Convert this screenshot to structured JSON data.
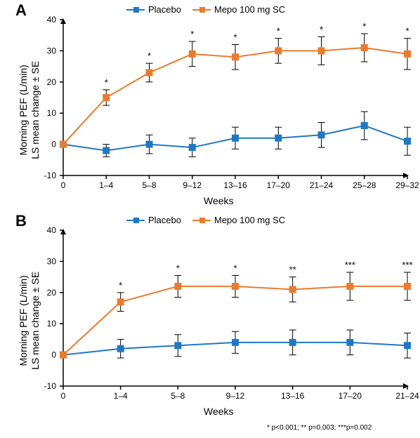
{
  "legend": {
    "placebo": "Placebo",
    "mepo": "Mepo 100 mg SC"
  },
  "colors": {
    "placebo": "#1f78c4",
    "mepo": "#e97b2e",
    "axis": "#000000",
    "background": "#ffffff",
    "marker_fill_placebo": "#1f78c4",
    "marker_fill_mepo": "#e97b2e"
  },
  "ylabel": "Morning PEF (L/min)\nLS mean change ± SE",
  "xlabel": "Weeks",
  "panelA": {
    "label": "A",
    "ylim": [
      -10,
      40
    ],
    "ytick_step": 10,
    "yticks": [
      "-10",
      "0",
      "10",
      "20",
      "30",
      "40"
    ],
    "categories": [
      "0",
      "1–4",
      "5–8",
      "9–12",
      "13–16",
      "17–20",
      "21–24",
      "25–28",
      "29–32"
    ],
    "placebo": {
      "y": [
        0,
        -2,
        0,
        -1,
        2,
        2,
        3,
        6,
        1
      ],
      "err": [
        0,
        2,
        3,
        3,
        3.5,
        3.5,
        4,
        4.5,
        4.5
      ]
    },
    "mepo": {
      "y": [
        0,
        15,
        23,
        29,
        28,
        30,
        30,
        31,
        29
      ],
      "err": [
        0,
        2.5,
        3,
        4,
        4,
        4,
        4.5,
        4.5,
        5
      ]
    },
    "sig": [
      "",
      "*",
      "*",
      "*",
      "*",
      "*",
      "*",
      "*",
      "*"
    ]
  },
  "panelB": {
    "label": "B",
    "ylim": [
      -10,
      40
    ],
    "ytick_step": 10,
    "yticks": [
      "-10",
      "0",
      "10",
      "20",
      "30",
      "40"
    ],
    "categories": [
      "0",
      "1–4",
      "5–8",
      "9–12",
      "13–16",
      "17–20",
      "21–24"
    ],
    "placebo": {
      "y": [
        0,
        2,
        3,
        4,
        4,
        4,
        3
      ],
      "err": [
        0,
        3,
        3.5,
        3.5,
        4,
        4,
        4
      ]
    },
    "mepo": {
      "y": [
        0,
        17,
        22,
        22,
        21,
        22,
        22
      ],
      "err": [
        0,
        3,
        3.5,
        3.5,
        4,
        4.5,
        4.5
      ]
    },
    "sig": [
      "",
      "*",
      "*",
      "*",
      "**",
      "***",
      "***"
    ]
  },
  "footnote": "* p<0.001; ** p=0.003; ***p=0.002",
  "style": {
    "line_width": 2,
    "marker_size": 5,
    "err_cap": 5,
    "title_fontsize": 22,
    "label_fontsize": 14,
    "tick_fontsize": 12,
    "legend_fontsize": 13,
    "footnote_fontsize": 10
  }
}
